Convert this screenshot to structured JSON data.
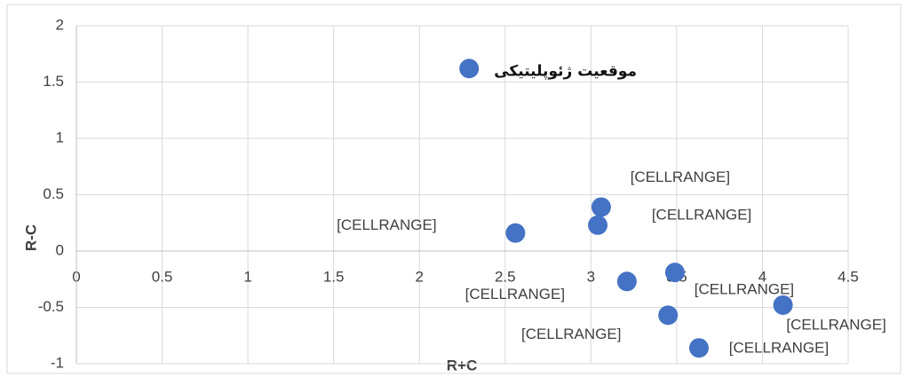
{
  "chart_data": {
    "type": "scatter",
    "x": [
      2.29,
      3.06,
      3.04,
      2.56,
      3.21,
      3.49,
      3.45,
      3.63,
      4.12
    ],
    "values": [
      1.62,
      0.39,
      0.23,
      0.16,
      -0.27,
      -0.19,
      -0.57,
      -0.86,
      -0.48
    ],
    "labels": [
      "موقعیت ژئوپلیتیکی",
      "[CELLRANGE]",
      "[CELLRANGE]",
      "[CELLRANGE]",
      "[CELLRANGE]",
      "[CELLRANGE]",
      "[CELLRANGE]",
      "[CELLRANGE]",
      "[CELLRANGE]"
    ],
    "color": "#4472c4",
    "x_label": "R+C",
    "y_label": "R-C",
    "xlim": [
      0,
      4.5
    ],
    "xticks": [
      0,
      0.5,
      1,
      1.5,
      2,
      2.5,
      3,
      3.5,
      4,
      4.5
    ],
    "ylim": [
      -1,
      2
    ],
    "yticks": [
      -1,
      -0.5,
      0,
      0.5,
      1,
      1.5,
      2
    ],
    "grid": true
  }
}
